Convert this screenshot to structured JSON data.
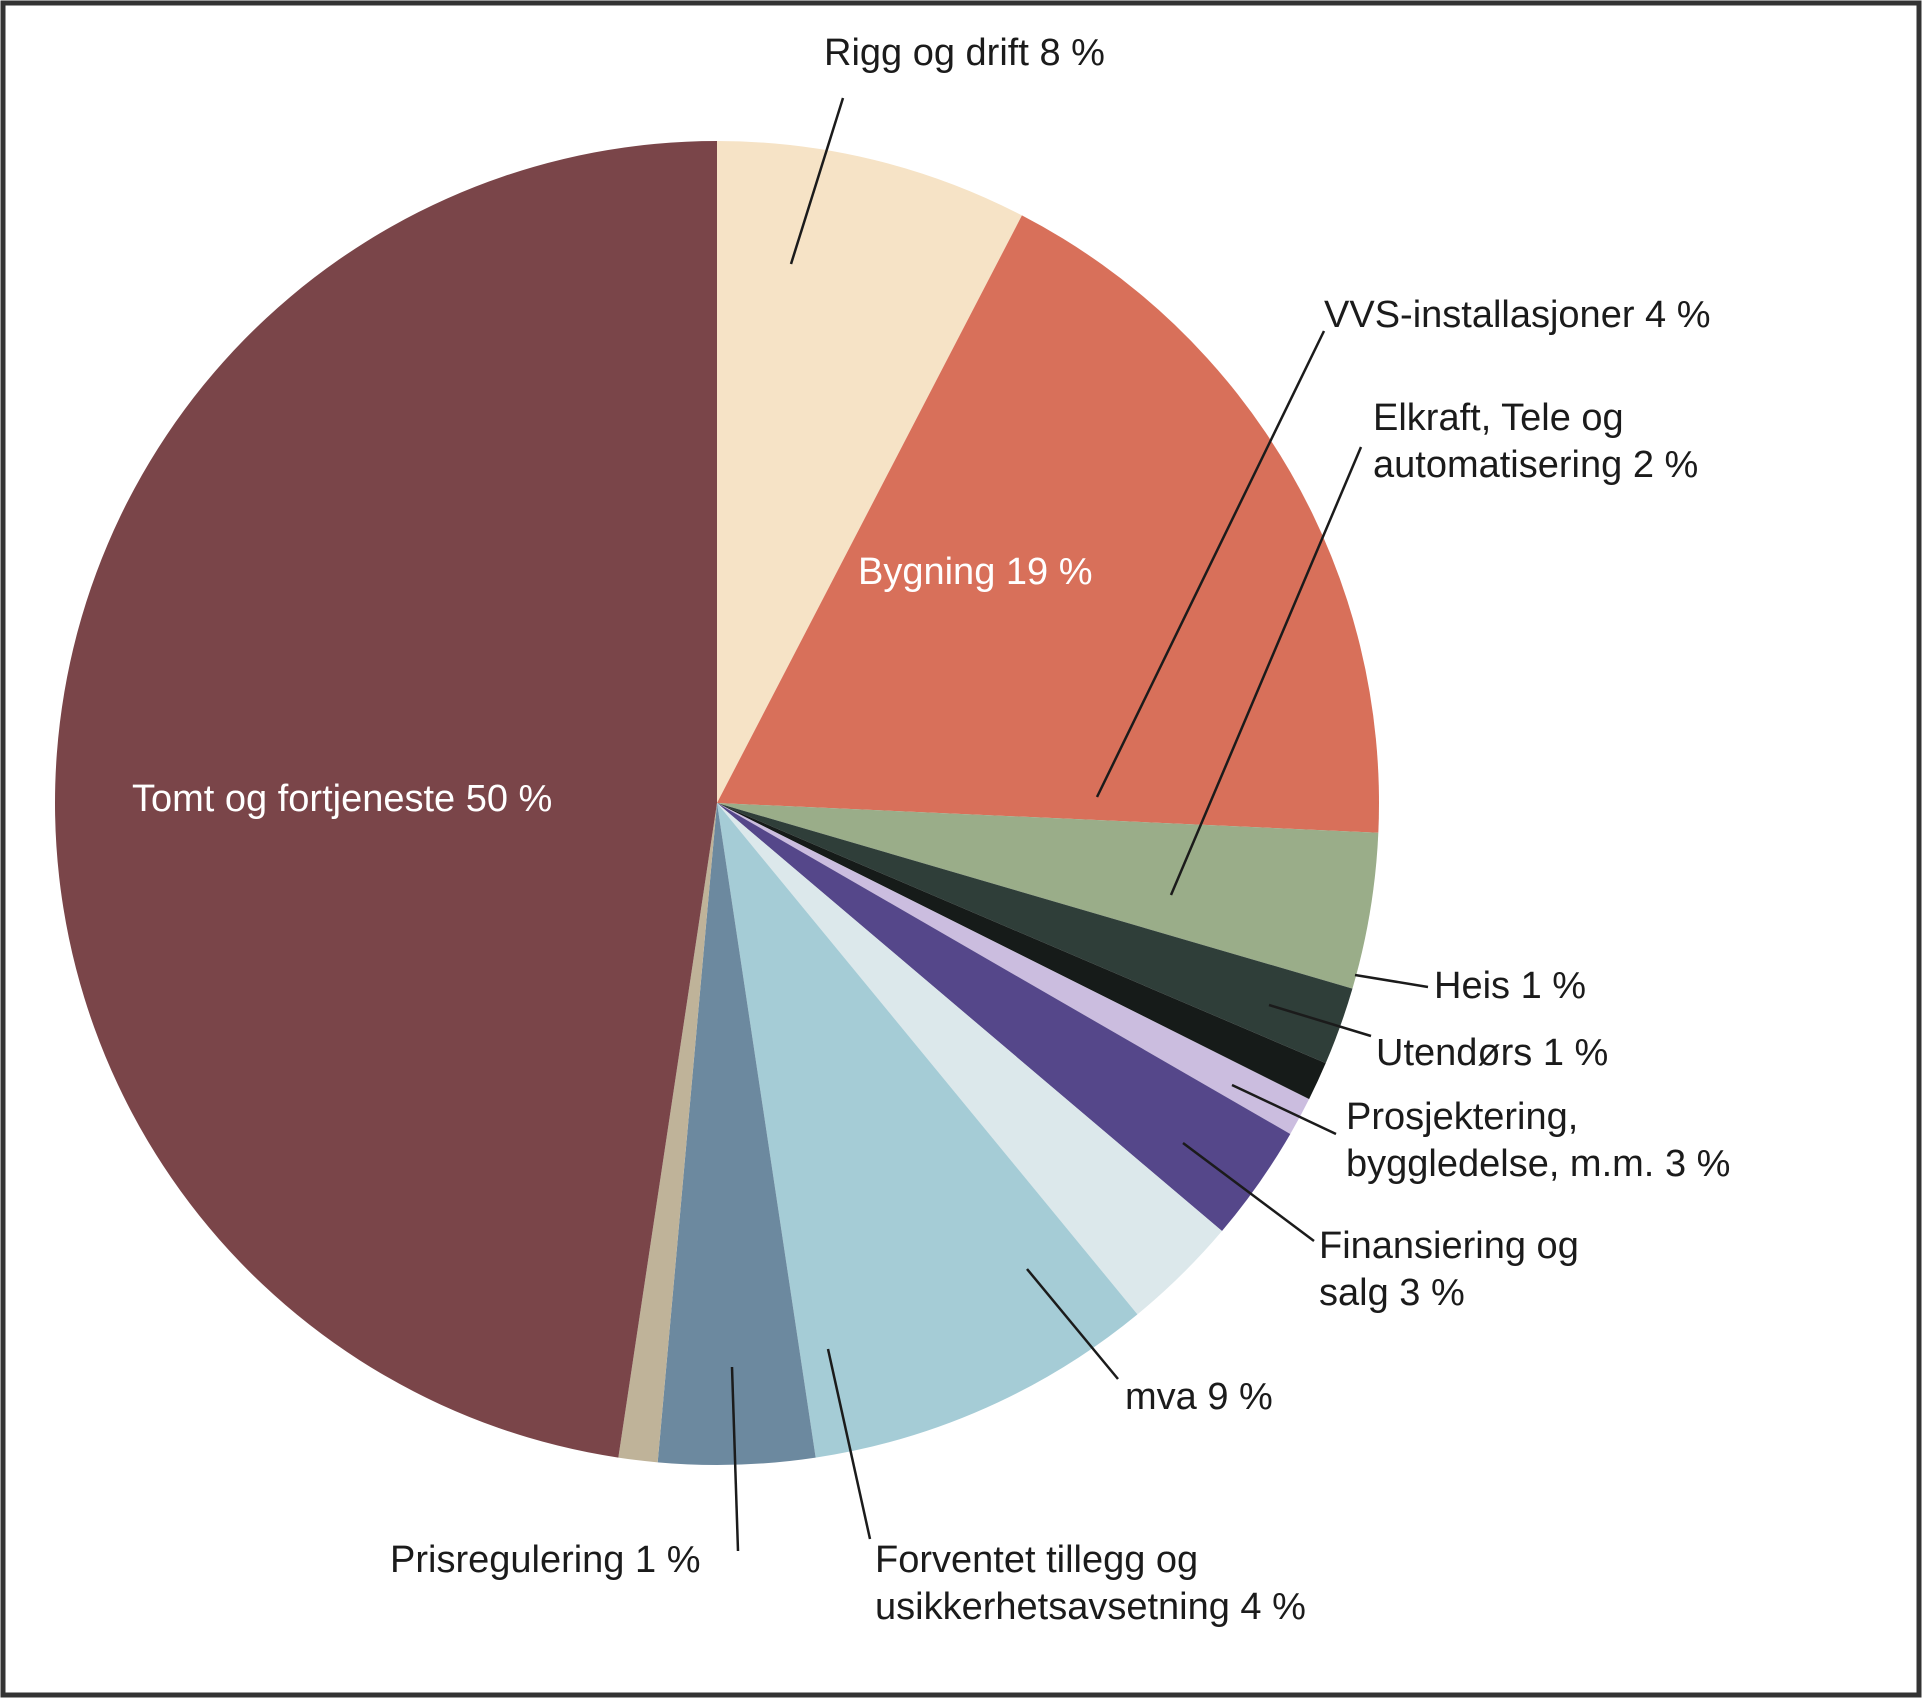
{
  "chart_data": {
    "type": "pie",
    "categories": [
      "Rigg og drift",
      "Bygning",
      "VVS-installasjoner",
      "Elkraft, Tele og automatisering",
      "Heis",
      "Utendørs",
      "Prosjektering, byggledelse, m.m.",
      "Finansiering og salg",
      "mva",
      "Forventet tillegg og usikkerhetsavsetning",
      "Prisregulering",
      "Tomt og fortjeneste"
    ],
    "values": [
      8,
      19,
      4,
      2,
      1,
      1,
      3,
      3,
      9,
      4,
      1,
      50
    ],
    "value_labels": [
      "8 %",
      "19 %",
      "4 %",
      "2 %",
      "1 %",
      "1 %",
      "3 %",
      "3 %",
      "9 %",
      "4 %",
      "1 %",
      "50 %"
    ],
    "colors": [
      "#f6e3c6",
      "#d8705a",
      "#9aad89",
      "#2f3e39",
      "#161b19",
      "#cbbddf",
      "#55478a",
      "#dce8eb",
      "#a5ccd6",
      "#6c899f",
      "#bfb399",
      "#7a4549"
    ]
  }
}
